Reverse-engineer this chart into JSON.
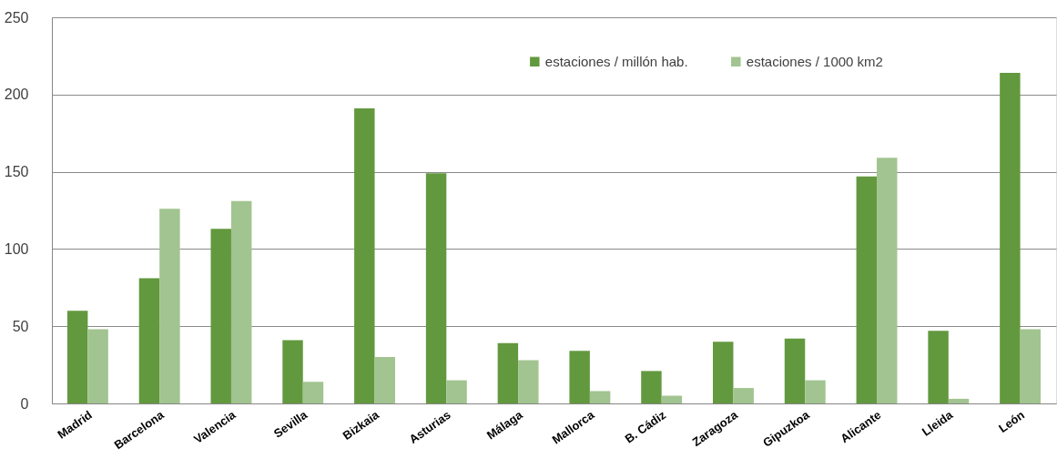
{
  "chart_data": {
    "type": "bar",
    "categories": [
      "Madrid",
      "Barcelona",
      "Valencia",
      "Sevilla",
      "Bizkaia",
      "Asturias",
      "Málaga",
      "Mallorca",
      "B. Cádiz",
      "Zaragoza",
      "Gipuzkoa",
      "Alicante",
      "Lleida",
      "León"
    ],
    "series": [
      {
        "name": "estaciones / millón hab.",
        "color": "#62993e",
        "values": [
          60,
          81,
          113,
          41,
          191,
          149,
          39,
          34,
          21,
          40,
          42,
          147,
          47,
          214
        ]
      },
      {
        "name": "estaciones / 1000 km2",
        "color": "#a2c490",
        "values": [
          48,
          126,
          131,
          14,
          30,
          15,
          28,
          8,
          5,
          10,
          15,
          159,
          3,
          48
        ]
      }
    ],
    "ylim": [
      0,
      250
    ],
    "yticks": [
      0,
      50,
      100,
      150,
      200,
      250
    ],
    "grid": "y",
    "legend": "top right"
  }
}
